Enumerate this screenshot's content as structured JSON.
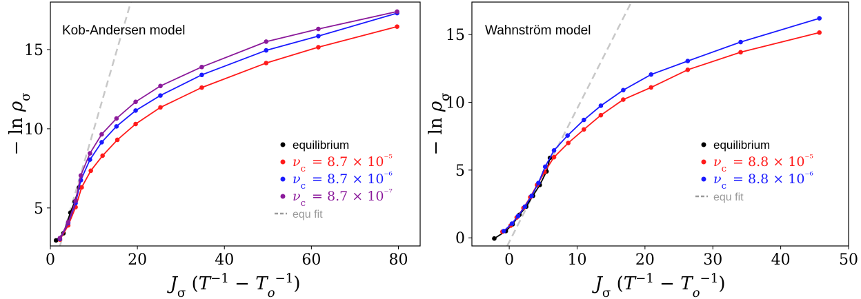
{
  "chart_data": [
    {
      "type": "line",
      "annotation": "Kob-Andersen model",
      "xlabel": "J_σ (T⁻¹ − T_o⁻¹)",
      "ylabel": "− ln ρ_σ",
      "xlim": [
        0,
        85
      ],
      "ylim": [
        2.6,
        18.0
      ],
      "xticks": [
        0,
        20,
        40,
        60,
        80
      ],
      "yticks": [
        5,
        10,
        15
      ],
      "grid": false,
      "legend_position": "lower-right",
      "series": [
        {
          "name": "equilibrium",
          "color": "#000000",
          "x": [
            1.3,
            3.0,
            4.6,
            5.6,
            6.6
          ],
          "y": [
            2.95,
            3.4,
            4.7,
            5.4,
            6.3
          ]
        },
        {
          "name": "ν_c = 8.7 × 10⁻⁵",
          "color": "#ff1a1a",
          "x": [
            2.2,
            4.1,
            5.8,
            7.2,
            9.3,
            12.0,
            15.4,
            19.6,
            25.3,
            34.8,
            49.6,
            61.6,
            79.7
          ],
          "y": [
            3.0,
            3.9,
            5.05,
            6.3,
            7.35,
            8.3,
            9.3,
            10.3,
            11.35,
            12.6,
            14.15,
            15.15,
            16.45
          ]
        },
        {
          "name": "ν_c = 8.7 × 10⁻⁶",
          "color": "#1a1aff",
          "x": [
            2.2,
            4.1,
            5.8,
            7.0,
            9.1,
            11.8,
            15.2,
            19.6,
            25.3,
            34.8,
            49.6,
            61.6,
            79.7
          ],
          "y": [
            3.05,
            4.05,
            5.3,
            6.75,
            8.05,
            9.15,
            10.15,
            11.15,
            12.1,
            13.4,
            14.95,
            15.85,
            17.3
          ]
        },
        {
          "name": "ν_c = 8.7 × 10⁻⁷",
          "color": "#8b1a9b",
          "x": [
            2.2,
            4.1,
            5.8,
            7.0,
            9.1,
            11.8,
            15.2,
            19.6,
            25.3,
            34.8,
            49.6,
            61.6,
            79.7
          ],
          "y": [
            3.1,
            4.1,
            5.45,
            7.05,
            8.45,
            9.65,
            10.65,
            11.7,
            12.7,
            13.9,
            15.5,
            16.3,
            17.4
          ]
        }
      ],
      "fit": {
        "name": "equ fit",
        "color": "#c8c8c8",
        "x": [
          2.2,
          18.5
        ],
        "y": [
          2.6,
          18.0
        ]
      }
    },
    {
      "type": "line",
      "annotation": "Wahnström model",
      "xlabel": "J_σ (T⁻¹ − T_o⁻¹)",
      "ylabel": "− ln ρ_σ",
      "xlim": [
        -5.5,
        50
      ],
      "ylim": [
        -0.6,
        17.4
      ],
      "xticks": [
        0,
        10,
        20,
        30,
        40,
        50
      ],
      "yticks": [
        0,
        5,
        10,
        15
      ],
      "grid": false,
      "legend_position": "lower-right",
      "series": [
        {
          "name": "equilibrium",
          "color": "#000000",
          "x": [
            -2.2,
            -0.5,
            0.5,
            1.5,
            2.5,
            3.5,
            4.5,
            5.5,
            6.0
          ],
          "y": [
            -0.05,
            0.5,
            1.0,
            1.7,
            2.3,
            3.1,
            3.9,
            4.9,
            5.9
          ]
        },
        {
          "name": "ν_c = 8.8 × 10⁻⁵",
          "color": "#ff1a1a",
          "x": [
            -1.0,
            0.2,
            1.1,
            2.1,
            3.1,
            4.1,
            5.2,
            6.6,
            8.7,
            11.0,
            13.5,
            16.8,
            20.9,
            26.3,
            34.1,
            45.7
          ],
          "y": [
            0.45,
            0.9,
            1.5,
            2.2,
            3.0,
            3.9,
            4.85,
            5.95,
            7.0,
            8.0,
            9.05,
            10.2,
            11.1,
            12.4,
            13.7,
            15.15
          ]
        },
        {
          "name": "ν_c = 8.8 × 10⁻⁶",
          "color": "#1a1aff",
          "x": [
            -0.8,
            0.4,
            1.3,
            2.3,
            3.3,
            4.3,
            5.3,
            6.6,
            8.6,
            11.0,
            13.5,
            16.8,
            20.9,
            26.3,
            34.1,
            45.7
          ],
          "y": [
            0.5,
            1.05,
            1.6,
            2.3,
            3.1,
            4.05,
            5.25,
            6.45,
            7.55,
            8.7,
            9.75,
            10.9,
            12.05,
            13.05,
            14.45,
            16.2
          ]
        }
      ],
      "fit": {
        "name": "equ fit",
        "color": "#c8c8c8",
        "x": [
          -0.3,
          18.0
        ],
        "y": [
          -0.6,
          17.4
        ]
      }
    }
  ]
}
